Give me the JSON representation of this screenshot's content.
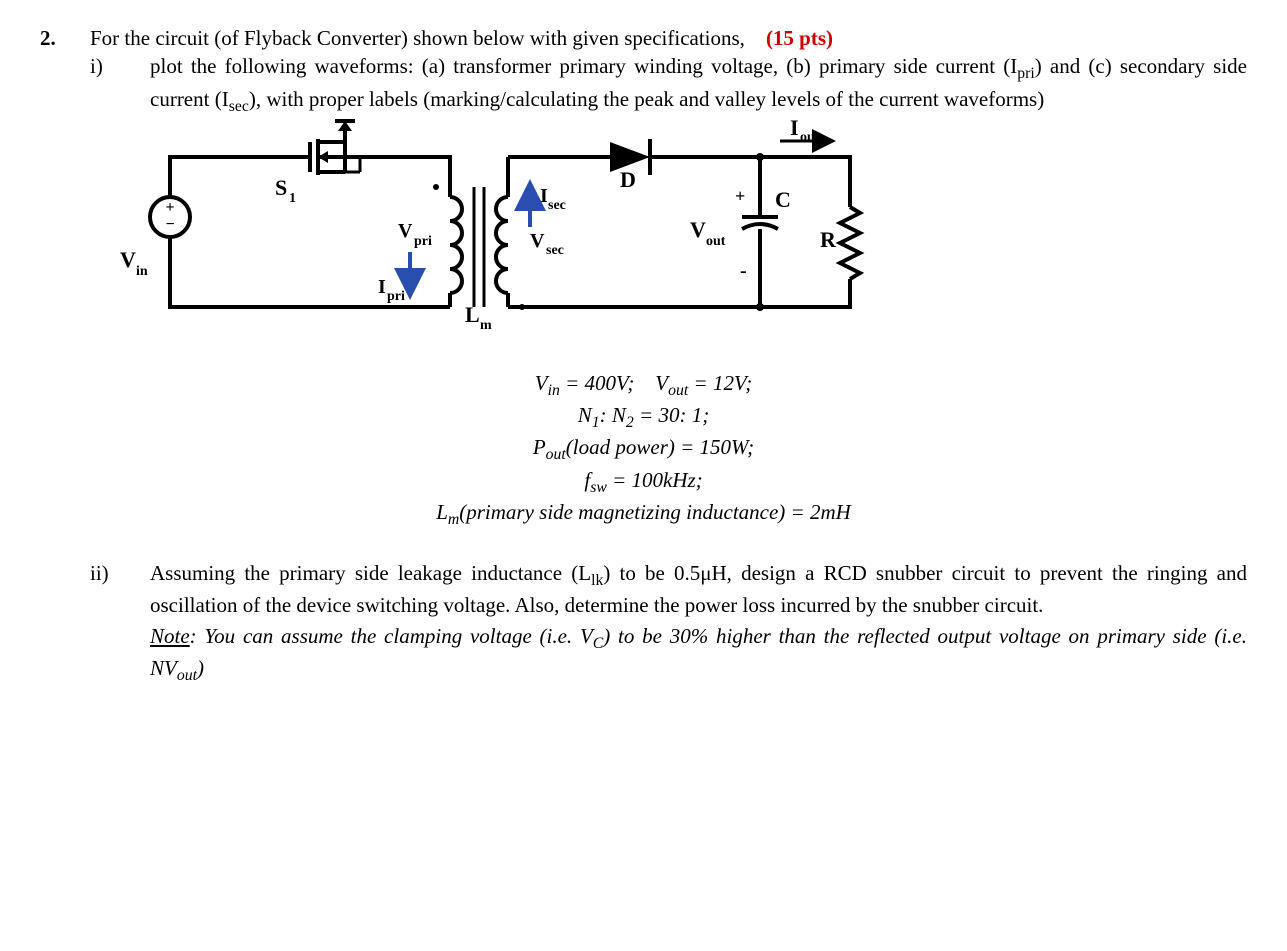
{
  "problem": {
    "number": "2.",
    "intro_prefix": "For the circuit (of Flyback Converter) shown below with given specifications,",
    "points": "(15 pts)"
  },
  "part_i": {
    "label": "i)",
    "text": "plot the following waveforms: (a) transformer primary winding voltage, (b) primary side current (I<sub class='sub-i'>pri</sub>) and (c) secondary side current (I<sub class='sub-i'>sec</sub>), with proper labels (marking/calculating the peak and valley levels of the current waveforms)"
  },
  "circuit": {
    "labels": {
      "Vin": "V",
      "Vin_sub": "in",
      "S1": "S",
      "S1_sub": "1",
      "Vpri": "V",
      "Vpri_sub": "pri",
      "Ipri": "I",
      "Ipri_sub": "pri",
      "Lm": "L",
      "Lm_sub": "m",
      "Isec": "I",
      "Isec_sub": "sec",
      "Vsec": "V",
      "Vsec_sub": "sec",
      "D": "D",
      "C": "C",
      "R": "R",
      "Vout": "V",
      "Vout_sub": "out",
      "Iout": "I",
      "Iout_sub": "out",
      "plus": "+",
      "minus": "-"
    },
    "stroke": "#000000",
    "stroke_width_main": 4,
    "stroke_width_thin": 2.5,
    "arrow_color": "#2a4db0"
  },
  "specs": {
    "line1": "V<sub class='sub-i'>in</sub> = 400V;&nbsp;&nbsp;&nbsp;&nbsp;V<sub class='sub-i'>out</sub> = 12V;",
    "line2": "N<sub class='sub-i'>1</sub>: N<sub class='sub-i'>2</sub> = 30: 1;",
    "line3": "P<sub class='sub-i'>out</sub>(load power) = 150W;",
    "line4": "f<sub class='sub-i'>sw</sub> = 100kHz;",
    "line5": "L<sub class='sub-i'>m</sub>(primary side magnetizing inductance) = 2mH"
  },
  "part_ii": {
    "label": "ii)",
    "text": "Assuming the primary side leakage inductance (L<sub class='sub-i'>lk</sub>) to be 0.5μH, design a RCD snubber circuit to prevent the ringing and oscillation of the device switching voltage. Also, determine the power loss incurred by the snubber circuit.",
    "note": "<span class='underline ital'>Note</span><span class='ital'>: You can assume the clamping voltage (i.e. V<sub class='sub-i'>C</sub>) to be 30% higher than the reflected output voltage on primary side (i.e. NV<sub class='sub-i'>out</sub>)</span>"
  }
}
